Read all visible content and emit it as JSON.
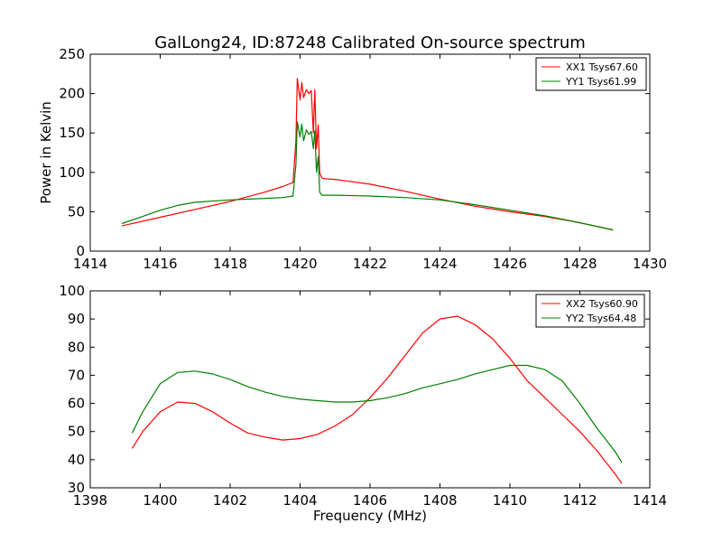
{
  "title": "GalLong24, ID:87248 Calibrated On-source spectrum",
  "colors": {
    "red": "#ff0000",
    "green": "#008000",
    "frame": "#000000",
    "background": "#ffffff"
  },
  "chart_data": [
    {
      "type": "line",
      "title": "GalLong24, ID:87248 Calibrated On-source spectrum",
      "xlabel": "",
      "ylabel": "Power in Kelvin",
      "xlim": [
        1414,
        1430
      ],
      "ylim": [
        0,
        250
      ],
      "xticks": [
        "1414",
        "1416",
        "1418",
        "1420",
        "1422",
        "1424",
        "1426",
        "1428",
        "1430"
      ],
      "yticks": [
        "0",
        "50",
        "100",
        "150",
        "200",
        "250"
      ],
      "grid": false,
      "legend_position": "top-right",
      "series": [
        {
          "name": "XX1 Tsys67.60",
          "color": "#ff0000",
          "x": [
            1414.9,
            1416,
            1417,
            1418,
            1419,
            1419.5,
            1419.8,
            1419.88,
            1419.92,
            1420.0,
            1420.05,
            1420.1,
            1420.18,
            1420.25,
            1420.32,
            1420.38,
            1420.42,
            1420.47,
            1420.52,
            1420.56,
            1420.62,
            1420.68,
            1421,
            1422,
            1423,
            1424,
            1425,
            1426,
            1427,
            1428,
            1428.95
          ],
          "y": [
            32,
            43,
            53,
            63,
            75,
            82,
            87,
            140,
            219,
            192,
            214,
            195,
            205,
            200,
            204,
            150,
            205,
            130,
            160,
            100,
            93,
            92,
            91,
            85,
            76,
            66,
            57,
            50,
            44,
            36,
            27
          ]
        },
        {
          "name": "YY1 Tsys61.99",
          "color": "#008000",
          "x": [
            1414.9,
            1415.5,
            1416,
            1416.5,
            1417,
            1418,
            1419,
            1419.5,
            1419.8,
            1419.88,
            1419.92,
            1420.0,
            1420.05,
            1420.1,
            1420.18,
            1420.25,
            1420.32,
            1420.38,
            1420.42,
            1420.47,
            1420.52,
            1420.56,
            1420.62,
            1420.68,
            1421,
            1422,
            1423,
            1424,
            1425,
            1426,
            1427,
            1428,
            1428.95
          ],
          "y": [
            35,
            44,
            52,
            58,
            62,
            65,
            67,
            68,
            70,
            110,
            164,
            145,
            161,
            140,
            154,
            148,
            152,
            130,
            153,
            100,
            120,
            75,
            71,
            71,
            71,
            70,
            68,
            65,
            59,
            52,
            45,
            36,
            27
          ]
        }
      ]
    },
    {
      "type": "line",
      "title": "",
      "xlabel": "Frequency (MHz)",
      "ylabel": "",
      "xlim": [
        1398,
        1414
      ],
      "ylim": [
        30,
        100
      ],
      "xticks": [
        "1398",
        "1400",
        "1402",
        "1404",
        "1406",
        "1408",
        "1410",
        "1412",
        "1414"
      ],
      "yticks": [
        "30",
        "40",
        "50",
        "60",
        "70",
        "80",
        "90",
        "100"
      ],
      "grid": false,
      "legend_position": "top-right",
      "series": [
        {
          "name": "XX2 Tsys60.90",
          "color": "#ff0000",
          "x": [
            1399.2,
            1399.5,
            1400.0,
            1400.5,
            1401.0,
            1401.5,
            1402.0,
            1402.5,
            1403.0,
            1403.5,
            1404.0,
            1404.5,
            1405.0,
            1405.5,
            1406.0,
            1406.5,
            1407.0,
            1407.5,
            1408.0,
            1408.5,
            1409.0,
            1409.5,
            1410.0,
            1410.5,
            1411.0,
            1411.5,
            1412.0,
            1412.5,
            1413.0,
            1413.2
          ],
          "y": [
            44,
            50,
            57,
            60.5,
            60,
            57,
            53,
            49.5,
            48,
            47,
            47.5,
            49,
            52,
            56,
            62,
            69,
            77,
            85,
            90,
            91,
            88,
            83,
            76,
            68,
            62,
            56,
            50,
            43,
            35,
            31.5
          ]
        },
        {
          "name": "YY2 Tsys64.48",
          "color": "#008000",
          "x": [
            1399.2,
            1399.5,
            1400.0,
            1400.5,
            1401.0,
            1401.5,
            1402.0,
            1402.5,
            1403.0,
            1403.5,
            1404.0,
            1404.5,
            1405.0,
            1405.5,
            1406.0,
            1406.5,
            1407.0,
            1407.5,
            1408.0,
            1408.5,
            1409.0,
            1409.5,
            1410.0,
            1410.5,
            1411.0,
            1411.5,
            1412.0,
            1412.5,
            1413.0,
            1413.2
          ],
          "y": [
            49.5,
            57,
            67,
            71,
            71.5,
            70.5,
            68.5,
            66,
            64,
            62.5,
            61.5,
            61,
            60.5,
            60.5,
            61,
            62,
            63.5,
            65.5,
            67,
            68.5,
            70.5,
            72,
            73.5,
            73.5,
            72,
            68,
            60,
            51,
            43,
            39
          ]
        }
      ]
    }
  ]
}
